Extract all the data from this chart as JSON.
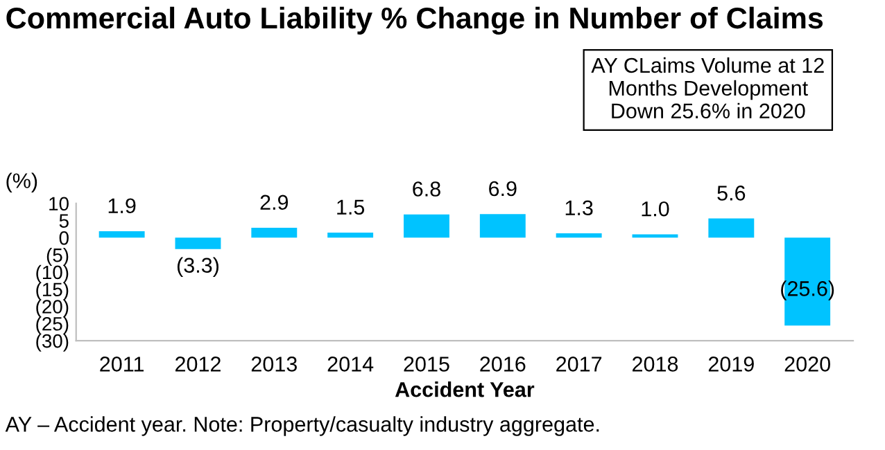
{
  "chart_data": {
    "type": "bar",
    "title": "Commercial Auto Liability % Change in Number of Claims",
    "xlabel": "Accident Year",
    "ylabel": "(%)",
    "categories": [
      "2011",
      "2012",
      "2013",
      "2014",
      "2015",
      "2016",
      "2017",
      "2018",
      "2019",
      "2020"
    ],
    "values": [
      1.9,
      -3.3,
      2.9,
      1.5,
      6.8,
      6.9,
      1.3,
      1.0,
      5.6,
      -25.6
    ],
    "value_labels": [
      "1.9",
      "(3.3)",
      "2.9",
      "1.5",
      "6.8",
      "6.9",
      "1.3",
      "1.0",
      "5.6",
      "(25.6)"
    ],
    "color": "#00c3ff",
    "ylim": [
      -30,
      10
    ],
    "yticks": [
      10,
      5,
      0,
      {
        "value": -5,
        "label": "(5)"
      },
      {
        "value": -10,
        "label": "(10)"
      },
      {
        "value": -15,
        "label": "(15)"
      },
      {
        "value": -20,
        "label": "(20)"
      },
      {
        "value": -25,
        "label": "(25)"
      },
      {
        "value": -30,
        "label": "(30)"
      }
    ],
    "grid": false,
    "annotations": [
      "AY CLaims Volume at 12\nMonths Development\nDown 25.6% in 2020",
      "AY – Accident year. Note: Property/casualty industry aggregate."
    ]
  }
}
